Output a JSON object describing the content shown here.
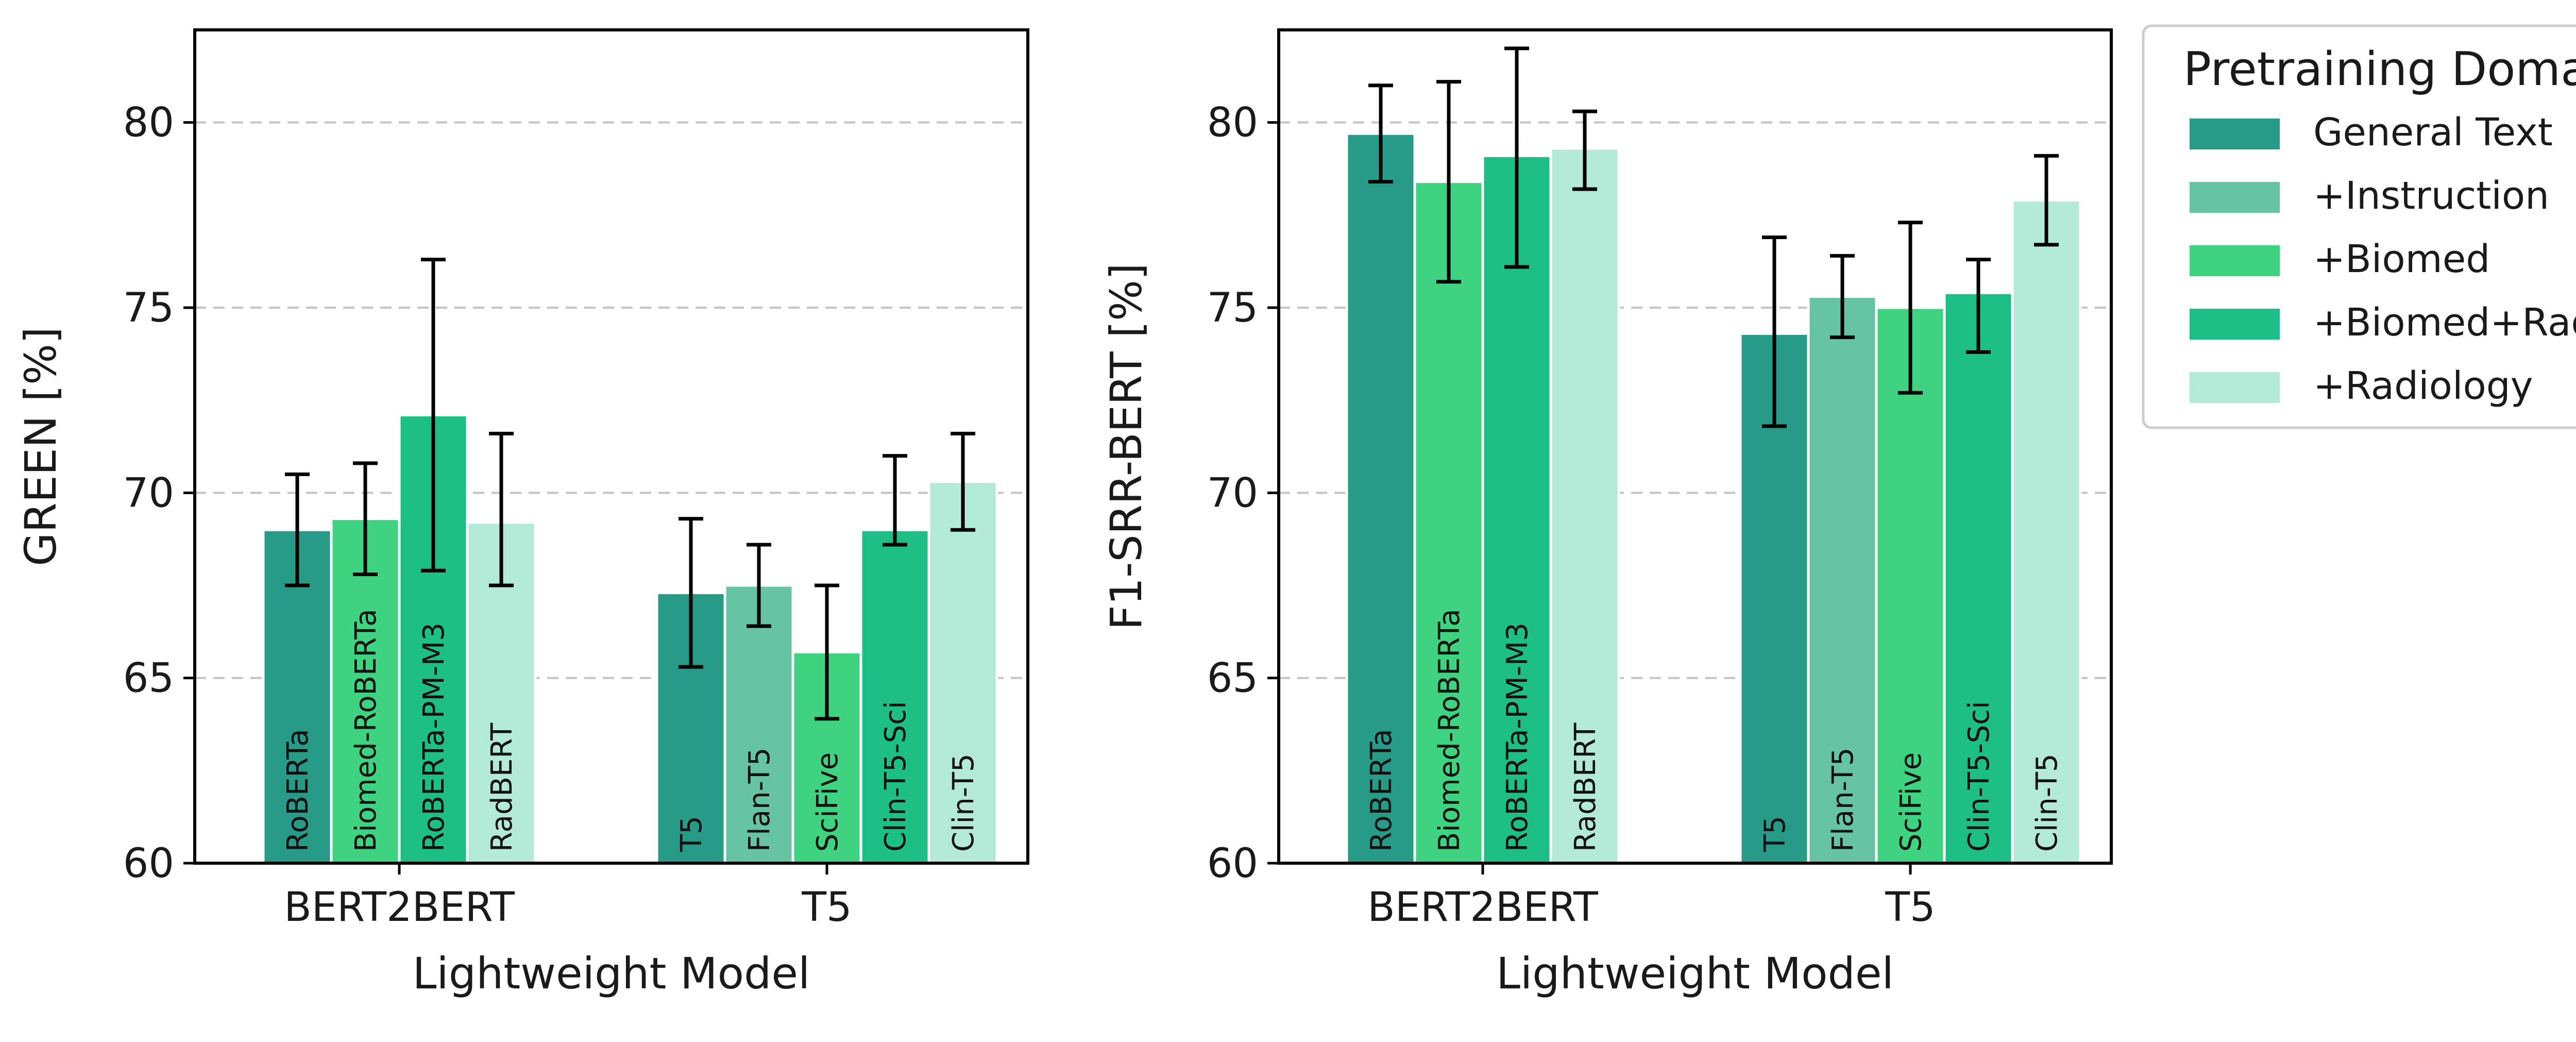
{
  "colors": {
    "general_text": "#279A88",
    "instruction": "#66C4A4",
    "biomed": "#3DD381",
    "biomed_rad": "#1DBF86",
    "radiology": "#B2EAD7"
  },
  "legend": {
    "title": "Pretraining Domain",
    "entries": [
      {
        "label": "General Text",
        "color": "#279A88"
      },
      {
        "label": "+Instruction",
        "color": "#66C4A4"
      },
      {
        "label": "+Biomed",
        "color": "#3DD381"
      },
      {
        "label": "+Biomed+Rad",
        "color": "#1DBF86"
      },
      {
        "label": "+Radiology",
        "color": "#B2EAD7"
      }
    ]
  },
  "chart_data": [
    {
      "type": "bar",
      "ylabel": "GREEN [%]",
      "xlabel": "Lightweight Model",
      "ylim": [
        60,
        82.5
      ],
      "yticks": [
        60,
        65,
        70,
        75,
        80
      ],
      "grid": true,
      "groups": [
        {
          "name": "BERT2BERT",
          "bars": [
            {
              "label": "RoBERTa",
              "domain": "General Text",
              "color": "#279A88",
              "value": 69.0,
              "err_low": 67.5,
              "err_high": 70.5
            },
            {
              "label": "Biomed-RoBERTa",
              "domain": "+Biomed",
              "color": "#3DD381",
              "value": 69.3,
              "err_low": 67.8,
              "err_high": 70.8
            },
            {
              "label": "RoBERTa-PM-M3",
              "domain": "+Biomed+Rad",
              "color": "#1DBF86",
              "value": 72.1,
              "err_low": 67.9,
              "err_high": 76.3
            },
            {
              "label": "RadBERT",
              "domain": "+Radiology",
              "color": "#B2EAD7",
              "value": 69.2,
              "err_low": 67.5,
              "err_high": 71.6
            }
          ]
        },
        {
          "name": "T5",
          "bars": [
            {
              "label": "T5",
              "domain": "General Text",
              "color": "#279A88",
              "value": 67.3,
              "err_low": 65.3,
              "err_high": 69.3
            },
            {
              "label": "Flan-T5",
              "domain": "+Instruction",
              "color": "#66C4A4",
              "value": 67.5,
              "err_low": 66.4,
              "err_high": 68.6
            },
            {
              "label": "SciFive",
              "domain": "+Biomed",
              "color": "#3DD381",
              "value": 65.7,
              "err_low": 63.9,
              "err_high": 67.5
            },
            {
              "label": "Clin-T5-Sci",
              "domain": "+Biomed+Rad",
              "color": "#1DBF86",
              "value": 69.0,
              "err_low": 68.6,
              "err_high": 71.0
            },
            {
              "label": "Clin-T5",
              "domain": "+Radiology",
              "color": "#B2EAD7",
              "value": 70.3,
              "err_low": 69.0,
              "err_high": 71.6
            }
          ]
        }
      ]
    },
    {
      "type": "bar",
      "ylabel": "F1-SRR-BERT [%]",
      "xlabel": "Lightweight Model",
      "ylim": [
        60,
        82.5
      ],
      "yticks": [
        60,
        65,
        70,
        75,
        80
      ],
      "grid": true,
      "groups": [
        {
          "name": "BERT2BERT",
          "bars": [
            {
              "label": "RoBERTa",
              "domain": "General Text",
              "color": "#279A88",
              "value": 79.7,
              "err_low": 78.4,
              "err_high": 81.0
            },
            {
              "label": "Biomed-RoBERTa",
              "domain": "+Biomed",
              "color": "#3DD381",
              "value": 78.4,
              "err_low": 75.7,
              "err_high": 81.1
            },
            {
              "label": "RoBERTa-PM-M3",
              "domain": "+Biomed+Rad",
              "color": "#1DBF86",
              "value": 79.1,
              "err_low": 76.1,
              "err_high": 82.0
            },
            {
              "label": "RadBERT",
              "domain": "+Radiology",
              "color": "#B2EAD7",
              "value": 79.3,
              "err_low": 78.2,
              "err_high": 80.3
            }
          ]
        },
        {
          "name": "T5",
          "bars": [
            {
              "label": "T5",
              "domain": "General Text",
              "color": "#279A88",
              "value": 74.3,
              "err_low": 71.8,
              "err_high": 76.9
            },
            {
              "label": "Flan-T5",
              "domain": "+Instruction",
              "color": "#66C4A4",
              "value": 75.3,
              "err_low": 74.2,
              "err_high": 76.4
            },
            {
              "label": "SciFive",
              "domain": "+Biomed",
              "color": "#3DD381",
              "value": 75.0,
              "err_low": 72.7,
              "err_high": 77.3
            },
            {
              "label": "Clin-T5-Sci",
              "domain": "+Biomed+Rad",
              "color": "#1DBF86",
              "value": 75.4,
              "err_low": 73.8,
              "err_high": 76.3
            },
            {
              "label": "Clin-T5",
              "domain": "+Radiology",
              "color": "#B2EAD7",
              "value": 77.9,
              "err_low": 76.7,
              "err_high": 79.1
            }
          ]
        }
      ]
    }
  ]
}
